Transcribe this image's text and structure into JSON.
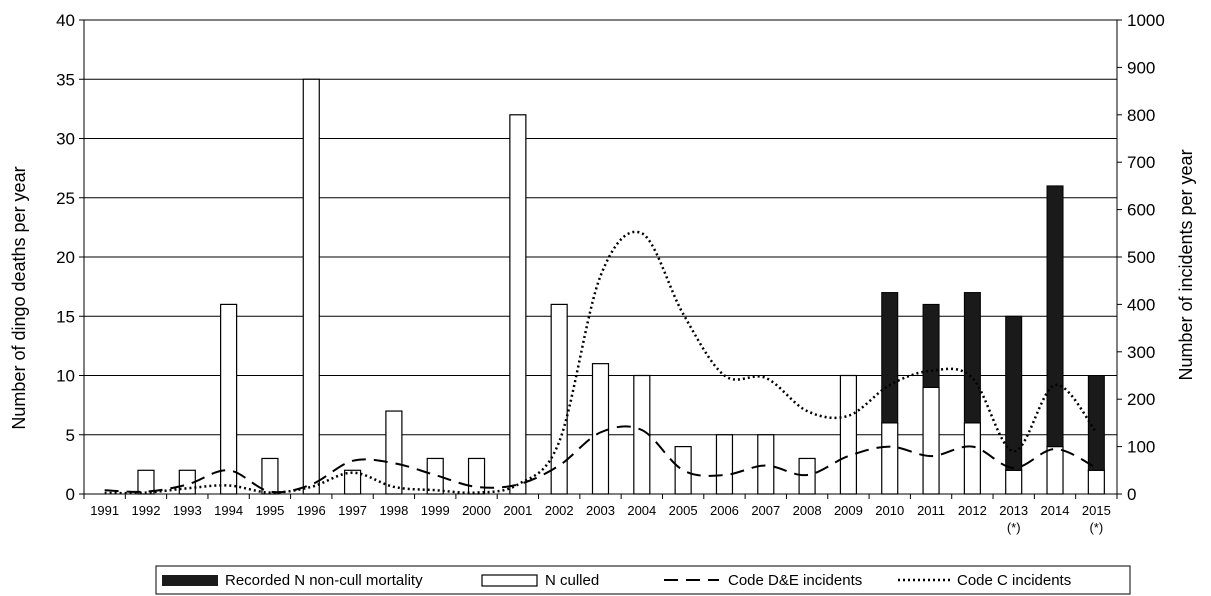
{
  "chart_data": {
    "type": "bar",
    "categories": [
      "1991",
      "1992",
      "1993",
      "1994",
      "1995",
      "1996",
      "1997",
      "1998",
      "1999",
      "2000",
      "2001",
      "2002",
      "2003",
      "2004",
      "2005",
      "2006",
      "2007",
      "2008",
      "2009",
      "2010",
      "2011",
      "2012",
      "2013",
      "2014",
      "2015"
    ],
    "category_notes": {
      "2013": "(*)",
      "2015": "(*)"
    },
    "ylabel": "Number of dingo deaths per year",
    "y2label": "Number of incidents per year",
    "ylim": [
      0,
      40
    ],
    "y2lim": [
      0,
      1000
    ],
    "yticks": [
      0,
      5,
      10,
      15,
      20,
      25,
      30,
      35,
      40
    ],
    "y2ticks": [
      0,
      100,
      200,
      300,
      400,
      500,
      600,
      700,
      800,
      900,
      1000
    ],
    "grid": true,
    "legend_position": "bottom",
    "series": [
      {
        "name": "N culled",
        "axis": "left",
        "kind": "bar",
        "color": "#ffffff",
        "values": [
          0,
          2,
          2,
          16,
          3,
          35,
          2,
          7,
          3,
          3,
          32,
          16,
          11,
          10,
          4,
          5,
          5,
          3,
          10,
          6,
          9,
          6,
          2,
          4,
          2
        ]
      },
      {
        "name": "Recorded N non-cull mortality",
        "axis": "left",
        "kind": "bar-stacked",
        "color": "#1a1a1a",
        "values": [
          0,
          0,
          0,
          0,
          0,
          0,
          0,
          0,
          0,
          0,
          0,
          0,
          0,
          0,
          0,
          0,
          0,
          0,
          0,
          11,
          7,
          11,
          13,
          22,
          8
        ]
      },
      {
        "name": "Code D&E incidents",
        "axis": "right",
        "kind": "line-dashed",
        "values": [
          8,
          5,
          20,
          50,
          5,
          20,
          70,
          65,
          40,
          15,
          20,
          60,
          130,
          135,
          50,
          40,
          60,
          40,
          80,
          100,
          80,
          100,
          55,
          95,
          55
        ]
      },
      {
        "name": "Code C incidents",
        "axis": "right",
        "kind": "line-dotted",
        "values": [
          2,
          3,
          12,
          18,
          3,
          15,
          45,
          15,
          8,
          3,
          20,
          110,
          460,
          550,
          380,
          250,
          245,
          175,
          165,
          230,
          260,
          245,
          90,
          230,
          130
        ]
      }
    ],
    "legend": [
      {
        "label": "Recorded N non-cull mortality",
        "swatch": "solid-bar"
      },
      {
        "label": "N culled",
        "swatch": "open-bar"
      },
      {
        "label": "Code D&E incidents",
        "swatch": "dashed-line"
      },
      {
        "label": "Code C incidents",
        "swatch": "dotted-line"
      }
    ]
  }
}
